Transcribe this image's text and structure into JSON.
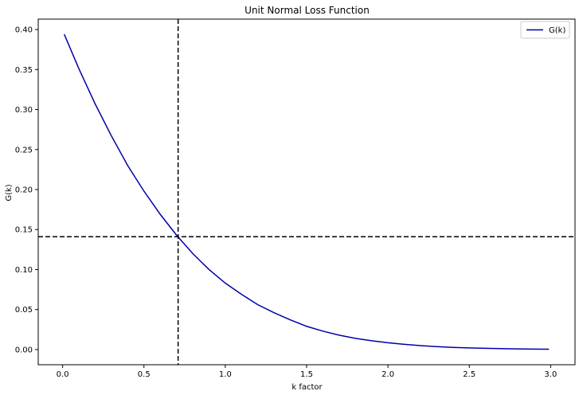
{
  "chart_data": {
    "type": "line",
    "title": "Unit Normal Loss Function",
    "xlabel": "k factor",
    "ylabel": "G(k)",
    "xlim": [
      -0.15,
      3.15
    ],
    "ylim": [
      -0.019,
      0.413
    ],
    "xticks": [
      0.0,
      0.5,
      1.0,
      1.5,
      2.0,
      2.5,
      3.0
    ],
    "xtick_labels": [
      "0.0",
      "0.5",
      "1.0",
      "1.5",
      "2.0",
      "2.5",
      "3.0"
    ],
    "yticks": [
      0.0,
      0.05,
      0.1,
      0.15,
      0.2,
      0.25,
      0.3,
      0.35,
      0.4
    ],
    "ytick_labels": [
      "0.00",
      "0.05",
      "0.10",
      "0.15",
      "0.20",
      "0.25",
      "0.30",
      "0.35",
      "0.40"
    ],
    "legend_position": "top-right",
    "grid": false,
    "series": [
      {
        "name": "G(k)",
        "color": "#0000aa",
        "x": [
          0.01,
          0.1,
          0.2,
          0.3,
          0.4,
          0.5,
          0.6,
          0.7,
          0.8,
          0.9,
          1.0,
          1.1,
          1.2,
          1.3,
          1.4,
          1.5,
          1.6,
          1.7,
          1.8,
          1.9,
          2.0,
          2.1,
          2.2,
          2.3,
          2.4,
          2.5,
          2.6,
          2.7,
          2.8,
          2.9,
          2.99
        ],
        "y": [
          0.394,
          0.351,
          0.307,
          0.267,
          0.23,
          0.198,
          0.169,
          0.143,
          0.12,
          0.1,
          0.083,
          0.069,
          0.056,
          0.046,
          0.037,
          0.029,
          0.023,
          0.018,
          0.014,
          0.011,
          0.0085,
          0.0065,
          0.0049,
          0.0037,
          0.0027,
          0.002,
          0.0015,
          0.0011,
          0.0008,
          0.0005,
          0.0004
        ]
      }
    ],
    "reference_lines": {
      "vertical_x": 0.71,
      "horizontal_y": 0.141,
      "color": "#000000",
      "style": "dashed"
    }
  }
}
